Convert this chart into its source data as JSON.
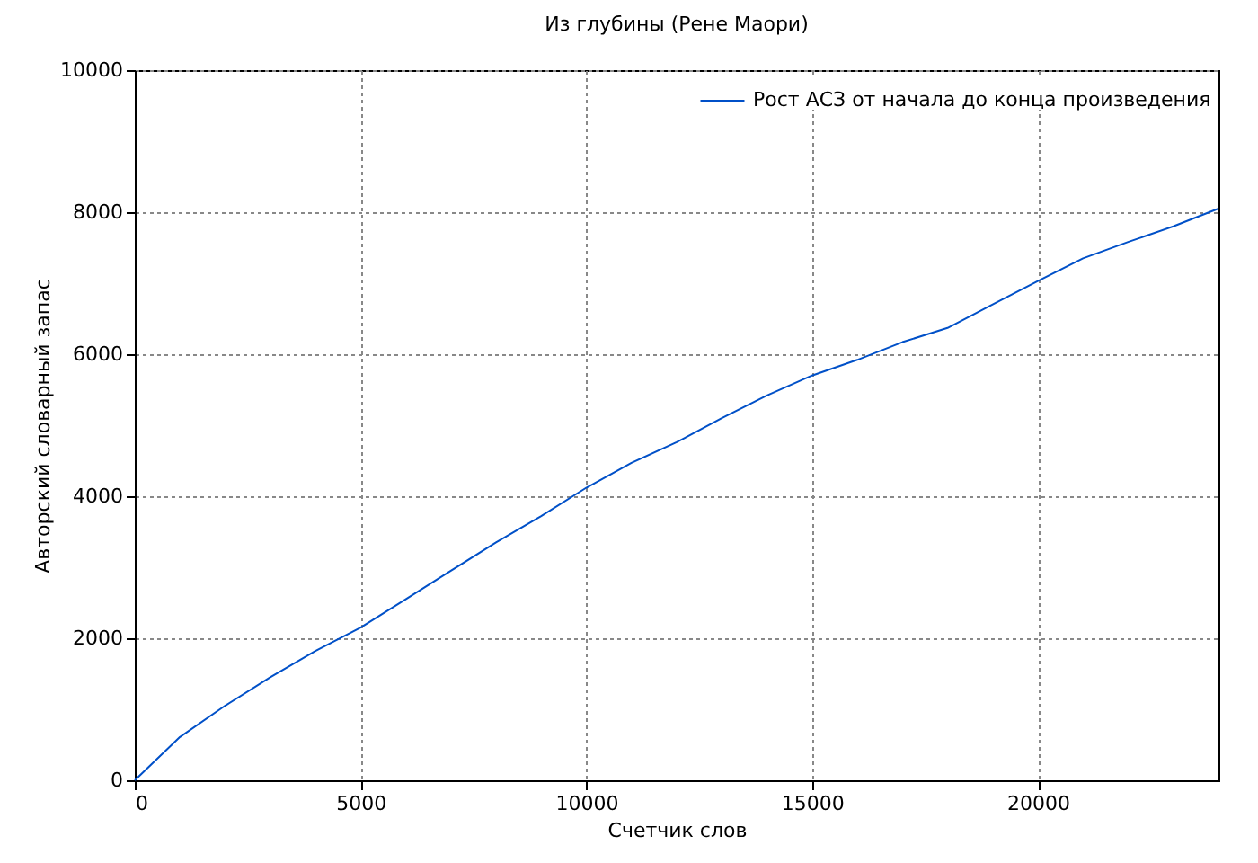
{
  "chart_data": {
    "type": "line",
    "title": "Из глубины (Рене Маори)",
    "xlabel": "Счетчик слов",
    "ylabel": "Авторский словарный запас",
    "x": [
      0,
      1000,
      2000,
      3000,
      4000,
      5000,
      6000,
      7000,
      8000,
      9000,
      10000,
      11000,
      12000,
      13000,
      14000,
      15000,
      16000,
      17000,
      18000,
      19000,
      20000,
      21000,
      22000,
      23000,
      24000
    ],
    "series": [
      {
        "name": "Рост АСЗ от начала до конца произведения",
        "color": "#0050c8",
        "values": [
          0,
          610,
          1050,
          1450,
          1820,
          2150,
          2550,
          2950,
          3350,
          3720,
          4120,
          4470,
          4760,
          5100,
          5420,
          5700,
          5920,
          6170,
          6370,
          6700,
          7030,
          7350,
          7580,
          7800,
          8050
        ]
      }
    ],
    "xlim": [
      0,
      24000
    ],
    "xticks": [
      0,
      5000,
      10000,
      15000,
      20000
    ],
    "ylim": [
      0,
      10000
    ],
    "yticks": [
      0,
      2000,
      4000,
      6000,
      8000,
      10000
    ],
    "grid": true,
    "legend": "top right",
    "marker": "none",
    "line_style": "solid"
  }
}
